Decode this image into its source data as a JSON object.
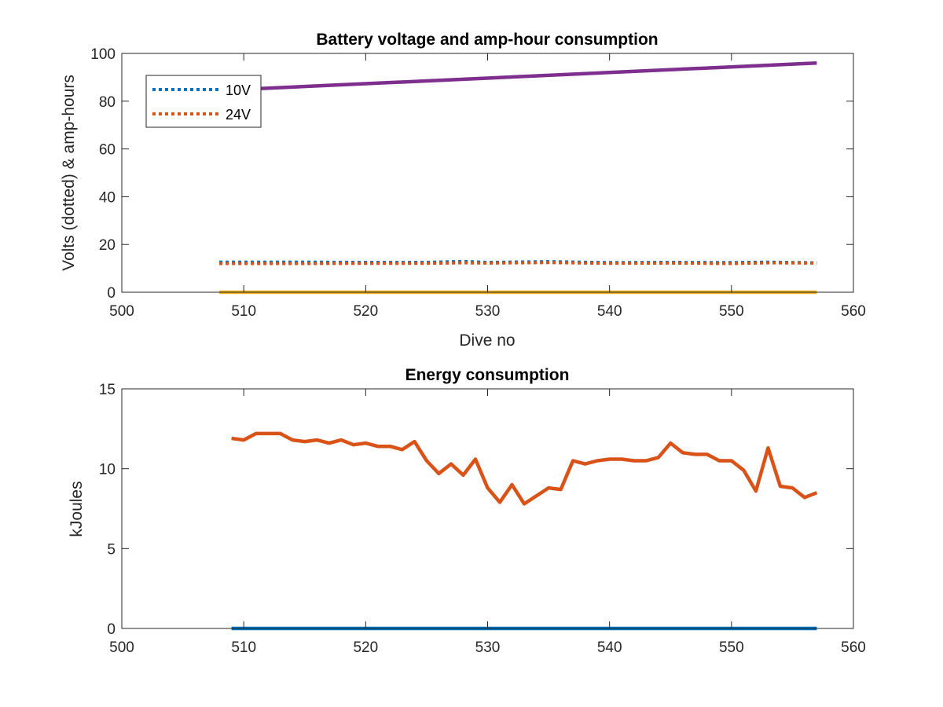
{
  "colors": {
    "blue": "#0072BD",
    "orange": "#D95319",
    "yellow": "#EDB120",
    "purple": "#7E2F8E",
    "axis": "#262626"
  },
  "chart_data": [
    {
      "type": "line",
      "title": "Battery voltage and amp-hour consumption",
      "xlabel": "Dive no",
      "ylabel": "Volts (dotted) & amp-hours",
      "xlim": [
        500,
        560
      ],
      "ylim": [
        0,
        100
      ],
      "xticks": [
        "500",
        "510",
        "520",
        "530",
        "540",
        "550",
        "560"
      ],
      "yticks": [
        "0",
        "20",
        "40",
        "60",
        "80",
        "100"
      ],
      "grid": false,
      "legend": {
        "placement": "top-left",
        "entries": [
          "10V",
          "24V"
        ]
      },
      "series": [
        {
          "name": "10V",
          "style": "dotted",
          "color": "#0072BD",
          "x": [
            508,
            515,
            520,
            525,
            528,
            530,
            535,
            540,
            545,
            550,
            553,
            557
          ],
          "y": [
            12.6,
            12.6,
            12.5,
            12.5,
            12.9,
            12.5,
            12.8,
            12.4,
            12.5,
            12.4,
            12.6,
            12.3
          ]
        },
        {
          "name": "24V",
          "style": "dotted",
          "color": "#D95319",
          "x": [
            508,
            515,
            520,
            525,
            528,
            530,
            535,
            540,
            545,
            550,
            553,
            557
          ],
          "y": [
            12.0,
            12.0,
            12.1,
            12.1,
            12.3,
            12.2,
            12.4,
            12.1,
            12.2,
            12.0,
            12.3,
            12.2
          ]
        },
        {
          "style": "solid",
          "color": "#EDB120",
          "x": [
            508,
            557
          ],
          "y": [
            0,
            0
          ]
        },
        {
          "style": "solid",
          "color": "#7E2F8E",
          "x": [
            508,
            557
          ],
          "y": [
            84.5,
            96
          ]
        }
      ]
    },
    {
      "type": "line",
      "title": "Energy consumption",
      "xlabel": "",
      "ylabel": "kJoules",
      "xlim": [
        500,
        560
      ],
      "ylim": [
        0,
        15
      ],
      "xticks": [
        "500",
        "510",
        "520",
        "530",
        "540",
        "550",
        "560"
      ],
      "yticks": [
        "0",
        "5",
        "10",
        "15"
      ],
      "grid": false,
      "series": [
        {
          "style": "solid",
          "color": "#D95319",
          "x": [
            509,
            510,
            511,
            512,
            513,
            514,
            515,
            516,
            517,
            518,
            519,
            520,
            521,
            522,
            523,
            524,
            525,
            526,
            527,
            528,
            529,
            530,
            531,
            532,
            533,
            534,
            535,
            536,
            537,
            538,
            539,
            540,
            541,
            542,
            543,
            544,
            545,
            546,
            547,
            548,
            549,
            550,
            551,
            552,
            553,
            554,
            555,
            556,
            557
          ],
          "y": [
            11.9,
            11.8,
            12.2,
            12.2,
            12.2,
            11.8,
            11.7,
            11.8,
            11.6,
            11.8,
            11.5,
            11.6,
            11.4,
            11.4,
            11.2,
            11.7,
            10.5,
            9.7,
            10.3,
            9.6,
            10.6,
            8.8,
            7.9,
            9.0,
            7.8,
            8.3,
            8.8,
            8.7,
            10.5,
            10.3,
            10.5,
            10.6,
            10.6,
            10.5,
            10.5,
            10.7,
            11.6,
            11.0,
            10.9,
            10.9,
            10.5,
            10.5,
            9.9,
            8.6,
            11.3,
            8.9,
            8.8,
            8.2,
            8.5
          ]
        },
        {
          "style": "solid",
          "color": "#0072BD",
          "x": [
            509,
            557
          ],
          "y": [
            0,
            0
          ]
        }
      ]
    }
  ]
}
